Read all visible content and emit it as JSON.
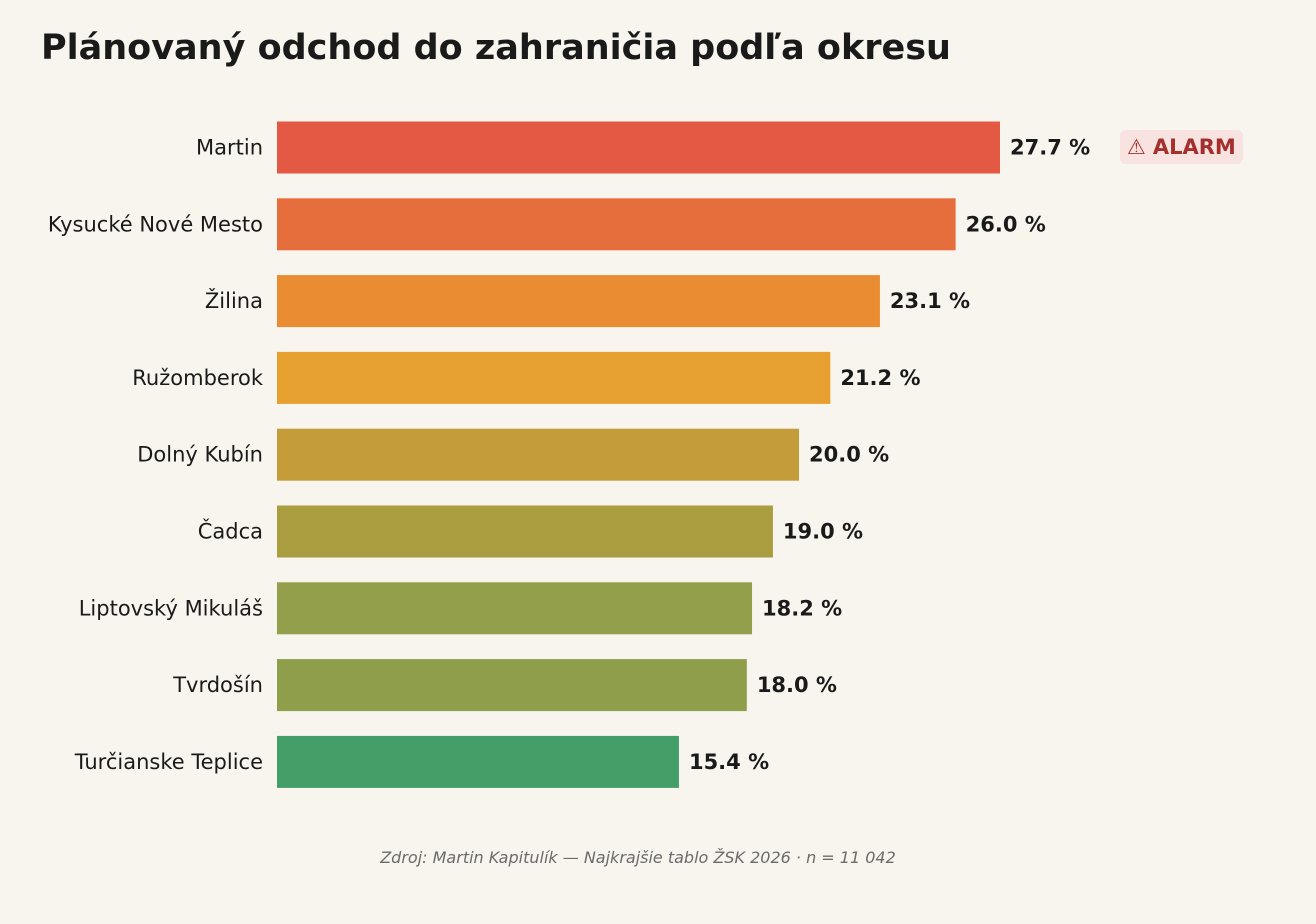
{
  "title": "Plánovaný odchod do zahraničia podľa okresu",
  "badge": {
    "icon": "warning-icon",
    "icon_glyph": "⚠",
    "text": "ALARM"
  },
  "footnote": "Zdroj: Martin Kapitulík — Najkrajšie tablo ŽSK 2026  ·  n = 11 042",
  "chart_data": {
    "type": "bar",
    "orientation": "horizontal",
    "title": "Plánovaný odchod do zahraničia podľa okresu",
    "unit": "%",
    "categories": [
      "Martin",
      "Kysucké Nové Mesto",
      "Žilina",
      "Ružomberok",
      "Dolný Kubín",
      "Čadca",
      "Liptovský Mikuláš",
      "Tvrdošín",
      "Turčianske Teplice"
    ],
    "values": [
      27.7,
      26.0,
      23.1,
      21.2,
      20.0,
      19.0,
      18.2,
      18.0,
      15.4
    ],
    "value_labels": [
      "27.7 %",
      "26.0 %",
      "23.1 %",
      "21.2 %",
      "20.0 %",
      "19.0 %",
      "18.2 %",
      "18.0 %",
      "15.4 %"
    ],
    "colors": [
      "#e35944",
      "#e66e3d",
      "#ea8c31",
      "#e5a02f",
      "#c49d3a",
      "#a99d40",
      "#939f4b",
      "#8e9e4b",
      "#449e68"
    ],
    "xlim": [
      0,
      27.7
    ],
    "grid": false,
    "legend": "none"
  }
}
